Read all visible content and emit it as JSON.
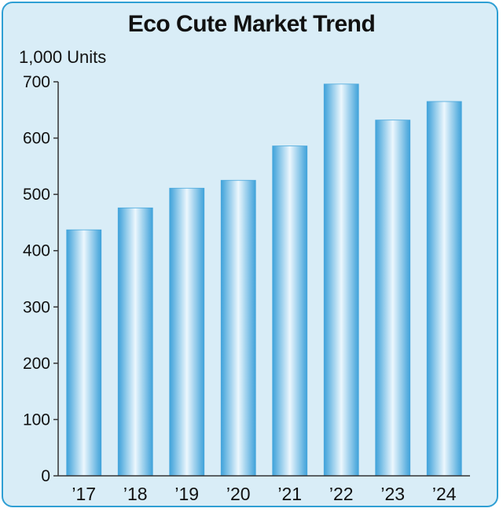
{
  "chart_data": {
    "type": "bar",
    "title": "Eco Cute Market Trend",
    "ylabel": "1,000 Units",
    "xlabel": "",
    "categories": [
      "’17",
      "’18",
      "’19",
      "’20",
      "’21",
      "’22",
      "’23",
      "’24"
    ],
    "values": [
      437,
      476,
      511,
      525,
      586,
      696,
      632,
      665
    ],
    "ylim": [
      0,
      700
    ],
    "yticks": [
      0,
      100,
      200,
      300,
      400,
      500,
      600,
      700
    ],
    "grid": false,
    "legend": "none"
  },
  "colors": {
    "background": "#d9edf7",
    "border": "#2f9fd4",
    "bar_edge": "#4aa8dc",
    "bar_center": "#e9f5fc",
    "axis": "#333333"
  }
}
